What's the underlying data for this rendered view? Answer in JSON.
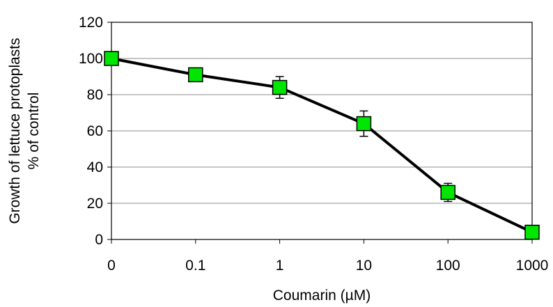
{
  "chart_data": {
    "type": "line",
    "title": "",
    "xlabel": "Coumarin (µM)",
    "ylabel_line1": "Growth of lettuce protoplasts",
    "ylabel_line2": "% of control",
    "x_scale": "categorical",
    "categories": [
      "0",
      "0.1",
      "1",
      "10",
      "100",
      "1000"
    ],
    "y_ticks": [
      "0",
      "20",
      "40",
      "60",
      "80",
      "100",
      "120"
    ],
    "ylim": [
      0,
      120
    ],
    "grid": "horizontal",
    "legend": "none",
    "series": [
      {
        "values": [
          100,
          91,
          84,
          64,
          26,
          4
        ],
        "error": [
          0,
          0,
          6,
          7,
          5,
          0
        ],
        "line_color": "#000000",
        "marker": "square",
        "marker_color": "#00e600"
      }
    ]
  }
}
